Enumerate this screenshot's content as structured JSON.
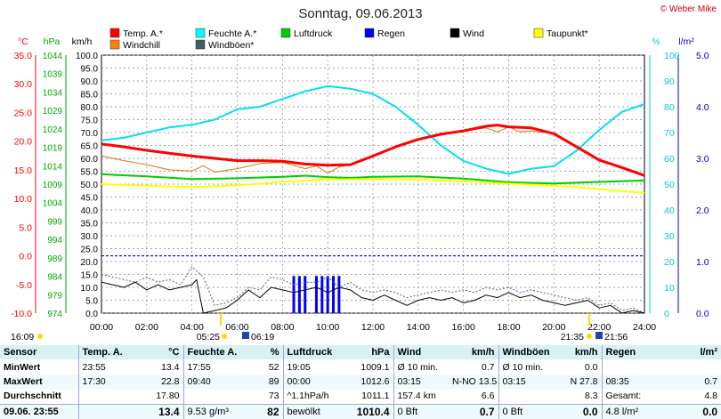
{
  "chart_data": {
    "type": "line",
    "title": "Sonntag, 09.06.2013",
    "credit": "© Weber Mike",
    "x_ticks": [
      "00:00",
      "02:00",
      "04:00",
      "06:00",
      "08:00",
      "10:00",
      "12:00",
      "14:00",
      "16:00",
      "18:00",
      "20:00",
      "22:00",
      "24:00"
    ],
    "axes": {
      "temp": {
        "label": "°C",
        "min": -10,
        "max": 35,
        "color": "#ff0000",
        "ticks": [
          "35.0",
          "30.0",
          "25.0",
          "20.0",
          "15.0",
          "10.0",
          "5.0",
          "0.0",
          "-5.0",
          "-10.0"
        ]
      },
      "pressure": {
        "label": "hPa",
        "min": 974,
        "max": 1044,
        "color": "#00aa00",
        "ticks": [
          "1044",
          "1039",
          "1034",
          "1029",
          "1024",
          "1019",
          "1014",
          "1009",
          "1004",
          "999",
          "994",
          "989",
          "984",
          "979",
          "974"
        ]
      },
      "wind": {
        "label": "km/h",
        "min": 0,
        "max": 100,
        "color": "#000000",
        "ticks": [
          "100.0",
          "95.0",
          "90.0",
          "85.0",
          "80.0",
          "75.0",
          "70.0",
          "65.0",
          "60.0",
          "55.0",
          "50.0",
          "45.0",
          "40.0",
          "35.0",
          "30.0",
          "25.0",
          "20.0",
          "15.0",
          "10.0",
          "5.0",
          "0.0"
        ]
      },
      "humidity": {
        "label": "%",
        "min": 0,
        "max": 100,
        "color": "#00cccc",
        "ticks": [
          "100",
          "90",
          "80",
          "70",
          "60",
          "50",
          "40",
          "30",
          "20",
          "10",
          "0"
        ]
      },
      "rain": {
        "label": "l/m²",
        "min": 0,
        "max": 5,
        "color": "#0000cc",
        "ticks": [
          "5.0",
          "4.0",
          "3.0",
          "2.0",
          "1.0",
          "0.0"
        ]
      }
    },
    "legend": [
      {
        "name": "Temp. A.*",
        "color": "#ff0000"
      },
      {
        "name": "Feuchte A.*",
        "color": "#00ffff"
      },
      {
        "name": "Luftdruck",
        "color": "#00cc00"
      },
      {
        "name": "Regen",
        "color": "#0000ff"
      },
      {
        "name": "Wind",
        "color": "#000000"
      },
      {
        "name": "Taupunkt*",
        "color": "#ffff00"
      },
      {
        "name": "Windchill",
        "color": "#ff7f00"
      },
      {
        "name": "Windböen*",
        "color": "#406060"
      }
    ],
    "series": [
      {
        "name": "Temp. A.*",
        "axis": "temp",
        "color": "#ff0000",
        "width": 3,
        "x": [
          0,
          1,
          2,
          3,
          4,
          5,
          6,
          7,
          8,
          9,
          10,
          11,
          12,
          13,
          14,
          15,
          16,
          17,
          17.5,
          18,
          19,
          20,
          21,
          22,
          23,
          24
        ],
        "y": [
          19.5,
          19.0,
          18.4,
          17.9,
          17.4,
          17.0,
          16.6,
          16.6,
          16.5,
          16.0,
          15.8,
          15.9,
          17.4,
          19.0,
          20.3,
          21.2,
          21.8,
          22.6,
          22.8,
          22.5,
          22.3,
          21.3,
          19.0,
          16.7,
          15.4,
          14.0
        ]
      },
      {
        "name": "Windchill",
        "axis": "temp",
        "color": "#e07010",
        "width": 1,
        "x": [
          0,
          1,
          2,
          3,
          4,
          4.5,
          5,
          6,
          7,
          8,
          9,
          9.5,
          10,
          10.5,
          11,
          12,
          13,
          14,
          15,
          16,
          17,
          17.5,
          18,
          18.5,
          19,
          20,
          21,
          22,
          23,
          24
        ],
        "y": [
          17.4,
          16.6,
          15.9,
          15.0,
          14.8,
          15.7,
          14.6,
          15.2,
          16.1,
          16.3,
          15.2,
          15.7,
          14.4,
          15.5,
          15.9,
          17.4,
          19.0,
          20.2,
          21.4,
          21.8,
          22.3,
          21.6,
          22.5,
          21.6,
          21.8,
          21.3,
          19.0,
          16.7,
          15.4,
          14.0
        ]
      },
      {
        "name": "Feuchte A.*",
        "axis": "humidity",
        "color": "#00e0f0",
        "width": 2,
        "x": [
          0,
          1,
          2,
          3,
          4,
          5,
          6,
          7,
          8,
          9,
          10,
          11,
          12,
          13,
          14,
          15,
          16,
          17,
          18,
          19,
          20,
          21,
          22,
          23,
          24
        ],
        "y": [
          67,
          68,
          70,
          72,
          73,
          75,
          79,
          80,
          83,
          86,
          88,
          87,
          85,
          80,
          73,
          65,
          59,
          56,
          54,
          56,
          57,
          63,
          71,
          78,
          81
        ]
      },
      {
        "name": "Luftdruck",
        "axis": "pressure",
        "color": "#00cc00",
        "width": 2,
        "x": [
          0,
          2,
          4,
          6,
          8,
          9,
          10,
          11,
          12,
          14,
          16,
          18,
          20,
          22,
          24
        ],
        "y": [
          1011.7,
          1011.1,
          1010.4,
          1010.6,
          1011.0,
          1011.3,
          1010.9,
          1010.7,
          1011.0,
          1011.1,
          1010.5,
          1009.5,
          1009.2,
          1009.6,
          1010.0
        ]
      },
      {
        "name": "Taupunkt*",
        "axis": "temp",
        "color": "#ffff00",
        "width": 2,
        "x": [
          0,
          2,
          4,
          6,
          8,
          10,
          12,
          14,
          16,
          18,
          20,
          21,
          22,
          23,
          24
        ],
        "y": [
          12.5,
          12.2,
          12.0,
          12.3,
          12.9,
          13.3,
          13.4,
          13.3,
          13.0,
          12.6,
          12.2,
          12.0,
          11.6,
          11.3,
          11.0
        ]
      },
      {
        "name": "Windböen*",
        "axis": "wind",
        "color": "#406090",
        "width": 1,
        "dash": true,
        "x": [
          0,
          0.5,
          1,
          1.5,
          2,
          2.5,
          3,
          3.5,
          4,
          4.5,
          5,
          5.5,
          6,
          6.5,
          7,
          7.5,
          8,
          8.5,
          9,
          9.5,
          10,
          10.5,
          11,
          11.5,
          12,
          12.5,
          13,
          13.5,
          14,
          14.5,
          15,
          15.5,
          16,
          16.5,
          17,
          17.5,
          18,
          18.5,
          19,
          19.5,
          20,
          20.5,
          21,
          21.5,
          22,
          22.5,
          23,
          23.5,
          24
        ],
        "y": [
          15,
          14,
          13,
          12,
          14,
          12,
          13,
          11,
          18,
          14,
          3,
          4,
          6,
          10,
          9,
          14,
          13,
          11,
          12,
          12,
          14,
          10,
          12,
          9,
          8,
          9,
          8,
          6,
          7,
          8,
          9,
          8,
          9,
          8,
          10,
          9,
          10,
          8,
          9,
          8,
          7,
          6,
          5,
          6,
          3,
          4,
          1,
          2,
          0
        ]
      },
      {
        "name": "Wind",
        "axis": "wind",
        "color": "#000000",
        "width": 1,
        "x": [
          0,
          0.5,
          1,
          1.5,
          2,
          2.5,
          3,
          3.5,
          4,
          4.2,
          4.5,
          5,
          5.5,
          6,
          6.5,
          7,
          7.5,
          8,
          8.5,
          9,
          9.5,
          10,
          10.5,
          11,
          11.5,
          12,
          12.5,
          13,
          13.5,
          14,
          14.5,
          15,
          15.5,
          16,
          16.5,
          17,
          17.5,
          18,
          18.5,
          19,
          19.5,
          20,
          20.5,
          21,
          21.5,
          22,
          22.5,
          23,
          23.5,
          24
        ],
        "y": [
          12,
          11,
          10,
          12,
          9,
          11,
          9,
          10,
          11,
          13,
          0,
          1,
          2,
          5,
          9,
          6,
          10,
          9,
          8,
          9,
          10,
          8,
          10,
          9,
          6,
          5,
          7,
          5,
          3,
          5,
          6,
          5,
          6,
          4,
          5,
          7,
          6,
          8,
          6,
          7,
          5,
          4,
          3,
          4,
          5,
          2,
          3,
          0,
          1,
          0
        ]
      }
    ],
    "rain_bars": {
      "axis": "rain",
      "color": "#0000ff",
      "x": [
        8.5,
        8.75,
        9.0,
        9.5,
        9.75,
        10.0,
        10.25,
        10.5
      ],
      "y": [
        0.72,
        0.72,
        0.72,
        0.72,
        0.72,
        0.72,
        0.72,
        0.72
      ]
    },
    "reference_line": {
      "value": 0.0,
      "axis": "temp",
      "color": "#0000cc"
    },
    "sun": {
      "sunrise": "05:25",
      "sunset": "21:35",
      "moonrise": "06:19",
      "moonset": "21:56",
      "left_time": "16:09"
    }
  },
  "table": {
    "headers": [
      "Sensor",
      "Temp. A.",
      "°C",
      "Feuchte A.",
      "%",
      "Luftdruck",
      "hPa",
      "Wind",
      "km/h",
      "Windböen",
      "km/h",
      "Regen",
      "l/m²"
    ],
    "rows": [
      [
        "MinWert",
        "23:55",
        "13.4",
        "17:55",
        "52",
        "19:05",
        "1009.1",
        "Ø 10 min.",
        "0.7",
        "Ø 10 min.",
        "0.0",
        "",
        ""
      ],
      [
        "MaxWert",
        "17:30",
        "22.8",
        "09:40",
        "89",
        "00:00",
        "1012.6",
        "03:15",
        "N-NO 13.5",
        "03:15",
        "N 27.8",
        "08:35",
        "0.7"
      ],
      [
        "Durchschnitt",
        "",
        "17.80",
        "",
        "73",
        "^1.1hPa/h",
        "1011.1",
        "157.4 km",
        "6.6",
        "",
        "8.3",
        "Gesamt:",
        "4.8"
      ],
      [
        "09.06. 23:55",
        "",
        "13.4",
        "9.53 g/m³",
        "82",
        "bewölkt",
        "1010.4",
        "0 Bft",
        "0.7",
        "0 Bft",
        "0.0",
        "4.8 l/m²",
        "0.0"
      ]
    ]
  }
}
